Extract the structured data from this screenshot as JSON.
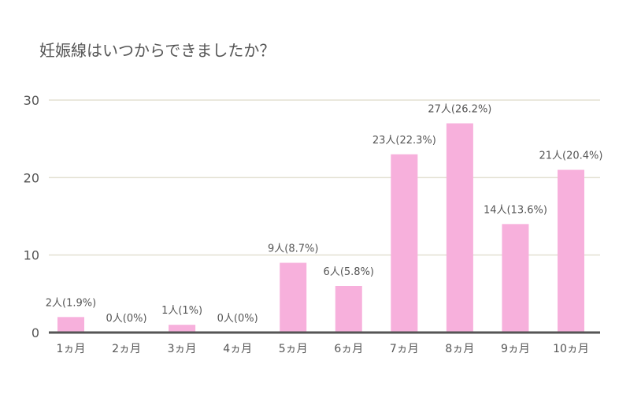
{
  "chart_data": {
    "type": "bar",
    "title": "妊娠線はいつからできましたか？",
    "categories": [
      "1ヵ月",
      "2ヵ月",
      "3ヵ月",
      "4ヵ月",
      "5ヵ月",
      "6ヵ月",
      "7ヵ月",
      "8ヵ月",
      "9ヵ月",
      "10ヵ月"
    ],
    "values": [
      2,
      0,
      1,
      0,
      9,
      6,
      23,
      27,
      14,
      21
    ],
    "data_labels": [
      "2人(1.9%)",
      "0人(0%)",
      "1人(1%)",
      "0人(0%)",
      "9人(8.7%)",
      "6人(5.8%)",
      "23人(22.3%)",
      "27人(26.2%)",
      "14人(13.6%)",
      "21人(20.4%)"
    ],
    "y_ticks": [
      "0",
      "10",
      "20",
      "30"
    ],
    "ylim": [
      0,
      30
    ],
    "grid": true,
    "bar_color": "#f7b0dc",
    "grid_color": "#e3e0d2",
    "axis_color": "#555555"
  }
}
